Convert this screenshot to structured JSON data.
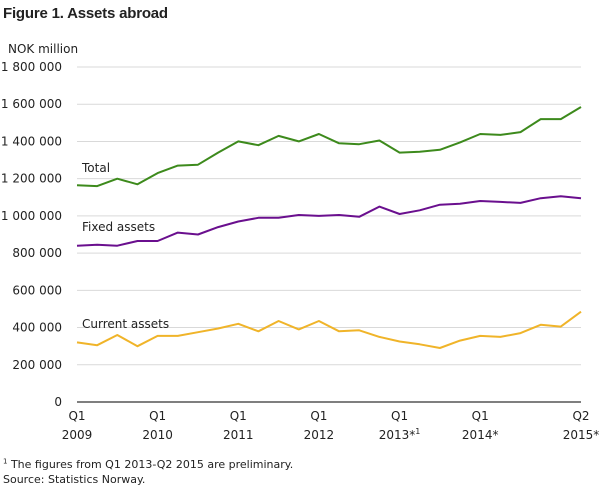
{
  "figure": {
    "title": "Figure 1. Assets abroad",
    "footnote_marker": "1",
    "footnote_text": " The figures from Q1 2013-Q2 2015 are preliminary.",
    "source": "Source: Statistics Norway."
  },
  "chart_data": {
    "type": "line",
    "title": "Figure 1. Assets abroad",
    "ylabel": "NOK million",
    "ylim": [
      0,
      1800000
    ],
    "yticks": [
      0,
      200000,
      400000,
      600000,
      800000,
      1000000,
      1200000,
      1400000,
      1600000,
      1800000
    ],
    "ytick_labels": [
      "0",
      "200 000",
      "400 000",
      "600 000",
      "800 000",
      "1 000 000",
      "1 200 000",
      "1 400 000",
      "1 600 000",
      "1 800 000"
    ],
    "grid": "horizontal",
    "x": [
      "2009Q1",
      "2009Q2",
      "2009Q3",
      "2009Q4",
      "2010Q1",
      "2010Q2",
      "2010Q3",
      "2010Q4",
      "2011Q1",
      "2011Q2",
      "2011Q3",
      "2011Q4",
      "2012Q1",
      "2012Q2",
      "2012Q3",
      "2012Q4",
      "2013Q1",
      "2013Q2",
      "2013Q3",
      "2013Q4",
      "2014Q1",
      "2014Q2",
      "2014Q3",
      "2014Q4",
      "2015Q1",
      "2015Q2"
    ],
    "xtick_labels": [
      {
        "index": 0,
        "line1": "Q1",
        "line2": "2009"
      },
      {
        "index": 4,
        "line1": "Q1",
        "line2": "2010"
      },
      {
        "index": 8,
        "line1": "Q1",
        "line2": "2011"
      },
      {
        "index": 12,
        "line1": "Q1",
        "line2": "2012"
      },
      {
        "index": 16,
        "line1": "Q1",
        "line2": "2013*",
        "sup": "1"
      },
      {
        "index": 20,
        "line1": "Q1",
        "line2": "2014*"
      },
      {
        "index": 25,
        "line1": "Q2",
        "line2": "2015*"
      }
    ],
    "series": [
      {
        "name": "Total",
        "color": "#3d8a1c",
        "values": [
          1165000,
          1160000,
          1200000,
          1170000,
          1230000,
          1270000,
          1275000,
          1340000,
          1400000,
          1380000,
          1430000,
          1400000,
          1440000,
          1390000,
          1385000,
          1405000,
          1340000,
          1345000,
          1355000,
          1395000,
          1440000,
          1435000,
          1450000,
          1520000,
          1520000,
          1585000
        ]
      },
      {
        "name": "Fixed assets",
        "color": "#6a0f8e",
        "values": [
          840000,
          845000,
          840000,
          865000,
          865000,
          910000,
          900000,
          940000,
          970000,
          990000,
          990000,
          1005000,
          1000000,
          1005000,
          995000,
          1050000,
          1010000,
          1030000,
          1060000,
          1065000,
          1080000,
          1075000,
          1070000,
          1095000,
          1105000,
          1095000
        ]
      },
      {
        "name": "Current assets",
        "color": "#f0b429",
        "values": [
          320000,
          305000,
          360000,
          300000,
          355000,
          355000,
          375000,
          395000,
          420000,
          380000,
          435000,
          390000,
          435000,
          380000,
          385000,
          350000,
          325000,
          310000,
          290000,
          330000,
          355000,
          350000,
          370000,
          415000,
          405000,
          485000
        ]
      }
    ],
    "series_labels": [
      {
        "series": 0,
        "text": "Total"
      },
      {
        "series": 1,
        "text": "Fixed assets"
      },
      {
        "series": 2,
        "text": "Current assets"
      }
    ]
  }
}
